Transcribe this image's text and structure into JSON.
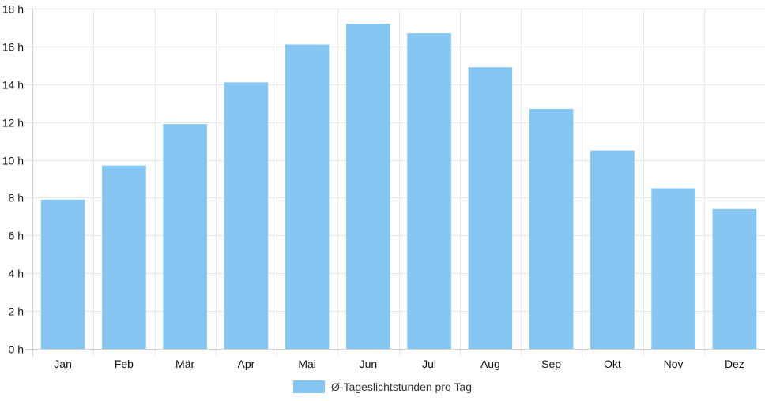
{
  "chart_data": {
    "type": "bar",
    "title": "",
    "xlabel": "",
    "ylabel": "",
    "categories": [
      "Jan",
      "Feb",
      "Mär",
      "Apr",
      "Mai",
      "Jun",
      "Jul",
      "Aug",
      "Sep",
      "Okt",
      "Nov",
      "Dez"
    ],
    "series": [
      {
        "name": "Ø-Tageslichtstunden pro Tag",
        "values": [
          7.9,
          9.7,
          11.9,
          14.1,
          16.1,
          17.2,
          16.7,
          14.9,
          12.7,
          10.5,
          8.5,
          7.4
        ]
      }
    ],
    "ylim": [
      0,
      18
    ],
    "yticks": [
      0,
      2,
      4,
      6,
      8,
      10,
      12,
      14,
      16,
      18
    ],
    "ytick_labels": [
      "0 h",
      "2 h",
      "4 h",
      "6 h",
      "8 h",
      "10 h",
      "12 h",
      "14 h",
      "16 h",
      "18 h"
    ],
    "grid": true,
    "legend_position": "bottom",
    "bar_color": "#85c6f2",
    "grid_color": "#e6e6e6"
  }
}
